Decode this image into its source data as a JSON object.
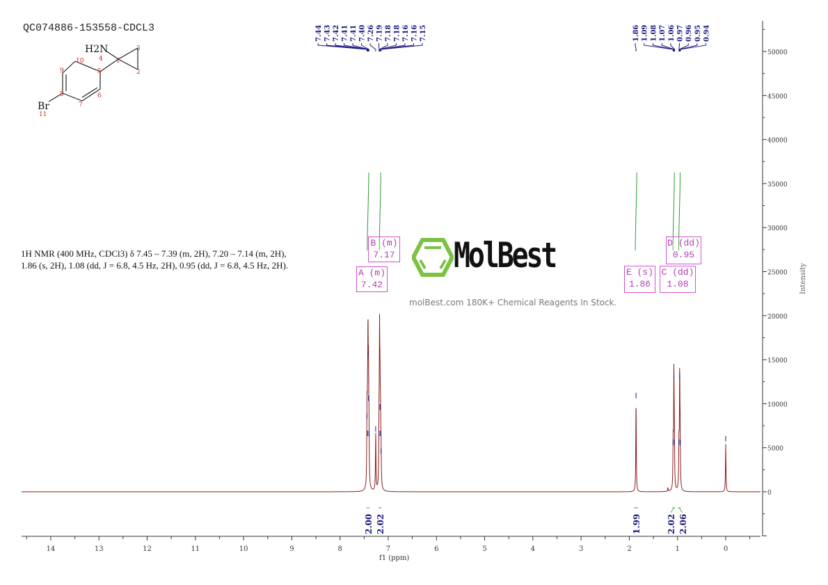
{
  "sample_id": "QC074886-153558-CDCL3",
  "nmr_description_line1": "1H NMR (400 MHz, CDCl3) δ 7.45 – 7.39 (m, 2H), 7.20 – 7.14 (m, 2H),",
  "nmr_description_line2": "1.86 (s, 2H), 1.08 (dd, J = 6.8, 4.5 Hz, 2H), 0.95 (dd, J = 6.8, 4.5 Hz, 2H).",
  "structure": {
    "atoms": [
      "H2N",
      "4",
      "1",
      "2",
      "3",
      "5",
      "6",
      "7",
      "8",
      "9",
      "10",
      "Br",
      "11"
    ]
  },
  "watermark": {
    "brand": "MolBest",
    "tagline": "molBest.com 180K+ Chemical Reagents In Stock."
  },
  "multiplets": [
    {
      "label": "A (m)",
      "shift": "7.42"
    },
    {
      "label": "B (m)",
      "shift": "7.17"
    },
    {
      "label": "E (s)",
      "shift": "1.86"
    },
    {
      "label": "C (dd)",
      "shift": "1.08"
    },
    {
      "label": "D (dd)",
      "shift": "0.95"
    }
  ],
  "colors": {
    "spectrum": "#8b1a1a",
    "peak_labels": "#1a1a80",
    "integral": "#2e9a2e",
    "multiplet_box": "#d24fd2"
  },
  "chart_data": {
    "type": "line",
    "xlabel": "f1 (ppm)",
    "ylabel": "Intensity",
    "xlim": [
      14.6,
      -0.7
    ],
    "ylim": [
      -5000,
      53000
    ],
    "x_reversed": true,
    "x_ticks": [
      "14",
      "13",
      "12",
      "11",
      "10",
      "9",
      "8",
      "7",
      "6",
      "5",
      "4",
      "3",
      "2",
      "1",
      "0"
    ],
    "y_ticks": [
      "50000",
      "45000",
      "40000",
      "35000",
      "30000",
      "25000",
      "20000",
      "15000",
      "10000",
      "5000",
      "0"
    ],
    "peaks": [
      {
        "ppm": 7.44,
        "intensity": 8000
      },
      {
        "ppm": 7.43,
        "intensity": 6000
      },
      {
        "ppm": 7.42,
        "intensity": 15000
      },
      {
        "ppm": 7.41,
        "intensity": 10000
      },
      {
        "ppm": 7.4,
        "intensity": 6000
      },
      {
        "ppm": 7.26,
        "intensity": 6500
      },
      {
        "ppm": 7.19,
        "intensity": 6000
      },
      {
        "ppm": 7.18,
        "intensity": 15500
      },
      {
        "ppm": 7.17,
        "intensity": 9000
      },
      {
        "ppm": 7.16,
        "intensity": 6000
      },
      {
        "ppm": 7.15,
        "intensity": 4000
      },
      {
        "ppm": 1.86,
        "intensity": 10300
      },
      {
        "ppm": 1.09,
        "intensity": 5000
      },
      {
        "ppm": 1.075,
        "intensity": 12500
      },
      {
        "ppm": 1.065,
        "intensity": 5000
      },
      {
        "ppm": 0.97,
        "intensity": 5000
      },
      {
        "ppm": 0.955,
        "intensity": 12500
      },
      {
        "ppm": 0.945,
        "intensity": 5000
      },
      {
        "ppm": 1.2,
        "intensity": 400
      },
      {
        "ppm": 0.0,
        "intensity": 5400
      }
    ],
    "peak_labels_left": [
      "7.44",
      "7.43",
      "7.42",
      "7.41",
      "7.41",
      "7.40",
      "7.26",
      "7.19",
      "7.18",
      "7.18",
      "7.16",
      "7.16",
      "7.15"
    ],
    "peak_labels_right": [
      "1.86",
      "1.09",
      "1.08",
      "1.07",
      "1.06",
      "0.97",
      "0.96",
      "0.95",
      "0.94"
    ],
    "integrals": [
      {
        "from": 7.45,
        "to": 7.39,
        "value": "2.00"
      },
      {
        "from": 7.2,
        "to": 7.14,
        "value": "2.02"
      },
      {
        "from": 1.9,
        "to": 1.82,
        "value": "1.99"
      },
      {
        "from": 1.11,
        "to": 1.05,
        "value": "2.02"
      },
      {
        "from": 0.99,
        "to": 0.93,
        "value": "2.06"
      }
    ]
  }
}
